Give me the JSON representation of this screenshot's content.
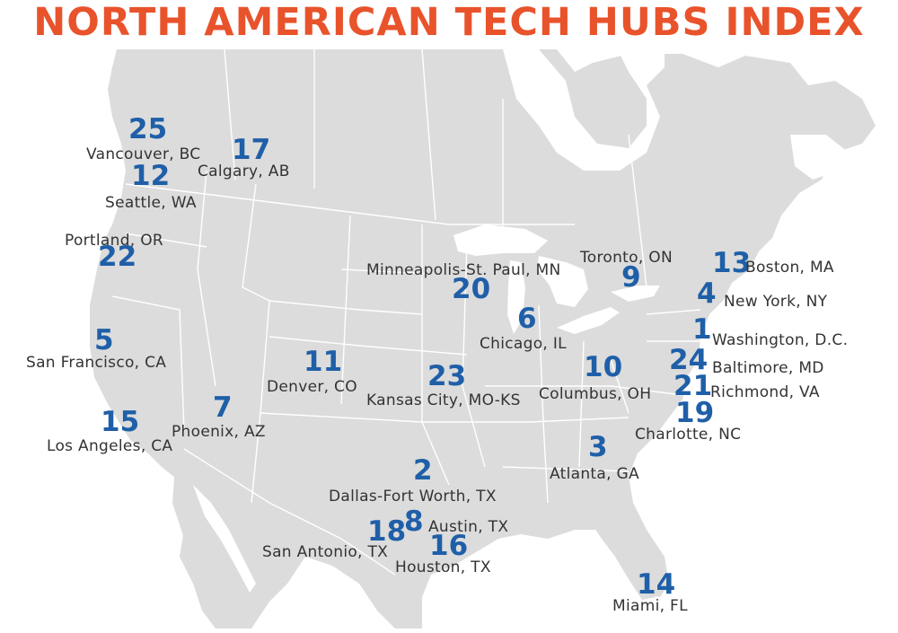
{
  "title": "NORTH AMERICAN TECH HUBS INDEX",
  "colors": {
    "title": "#e8532c",
    "rank": "#1f5fa8",
    "land": "#dcdcdc",
    "water": "#ffffff",
    "city_label": "#333333"
  },
  "hubs": [
    {
      "rank": "25",
      "city": "Vancouver, BC"
    },
    {
      "rank": "17",
      "city": "Calgary, AB"
    },
    {
      "rank": "12",
      "city": "Seattle, WA"
    },
    {
      "rank": "22",
      "city": "Portland, OR"
    },
    {
      "rank": "5",
      "city": "San Francisco, CA"
    },
    {
      "rank": "15",
      "city": "Los Angeles, CA"
    },
    {
      "rank": "7",
      "city": "Phoenix, AZ"
    },
    {
      "rank": "11",
      "city": "Denver, CO"
    },
    {
      "rank": "20",
      "city": "Minneapolis-St. Paul, MN"
    },
    {
      "rank": "23",
      "city": "Kansas City, MO-KS"
    },
    {
      "rank": "6",
      "city": "Chicago, IL"
    },
    {
      "rank": "9",
      "city": "Toronto, ON"
    },
    {
      "rank": "10",
      "city": "Columbus, OH"
    },
    {
      "rank": "13",
      "city": "Boston, MA"
    },
    {
      "rank": "4",
      "city": "New York, NY"
    },
    {
      "rank": "1",
      "city": "Washington, D.C."
    },
    {
      "rank": "24",
      "city": "Baltimore, MD"
    },
    {
      "rank": "21",
      "city": "Richmond, VA"
    },
    {
      "rank": "19",
      "city": "Charlotte, NC"
    },
    {
      "rank": "3",
      "city": "Atlanta, GA"
    },
    {
      "rank": "2",
      "city": "Dallas-Fort Worth, TX"
    },
    {
      "rank": "8",
      "city": "Austin, TX"
    },
    {
      "rank": "18",
      "city": "San Antonio, TX"
    },
    {
      "rank": "16",
      "city": "Houston, TX"
    },
    {
      "rank": "14",
      "city": "Miami, FL"
    }
  ]
}
